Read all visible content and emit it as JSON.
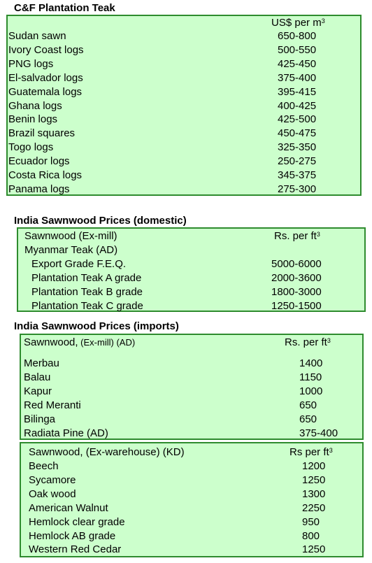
{
  "section1": {
    "title": "C&F Plantation Teak",
    "unit_text": "US$ per m",
    "unit_sup": "3",
    "rows": [
      {
        "label": "Sudan sawn",
        "value": "650-800"
      },
      {
        "label": "Ivory Coast logs",
        "value": "500-550"
      },
      {
        "label": "PNG logs",
        "value": "425-450"
      },
      {
        "label": "El-salvador logs",
        "value": "375-400"
      },
      {
        "label": "Guatemala logs",
        "value": "395-415"
      },
      {
        "label": "Ghana logs",
        "value": "400-425"
      },
      {
        "label": "Benin logs",
        "value": "425-500"
      },
      {
        "label": "Brazil squares",
        "value": "450-475"
      },
      {
        "label": "Togo logs",
        "value": "325-350"
      },
      {
        "label": "Ecuador logs",
        "value": "250-275"
      },
      {
        "label": "Costa Rica logs",
        "value": "345-375"
      },
      {
        "label": "Panama logs",
        "value": "275-300"
      }
    ]
  },
  "section2": {
    "title": "India Sawnwood Prices (domestic)",
    "header_label": "Sawnwood (Ex-mill)",
    "unit_text": "Rs. per ft",
    "unit_sup": "3",
    "subheader": "Myanmar Teak (AD)",
    "rows": [
      {
        "label": "Export Grade F.E.Q.",
        "value": "5000-6000"
      },
      {
        "label": "Plantation Teak A grade",
        "value": "2000-3600"
      },
      {
        "label": "Plantation Teak B grade",
        "value": "1800-3000"
      },
      {
        "label": "Plantation Teak C grade",
        "value": "1250-1500"
      }
    ]
  },
  "section3": {
    "title": "India Sawnwood Prices (imports)",
    "header_label_main": "Sawnwood,",
    "header_label_small": " (Ex-mill) (AD)",
    "unit_text": "Rs. per ft",
    "unit_sup": "3",
    "rows": [
      {
        "label": "Merbau",
        "value": "1400"
      },
      {
        "label": "Balau",
        "value": "1150"
      },
      {
        "label": "Kapur",
        "value": "1000"
      },
      {
        "label": "Red Meranti",
        "value": "650"
      },
      {
        "label": "Bilinga",
        "value": "650"
      },
      {
        "label": "Radiata Pine (AD)",
        "value": "375-400"
      }
    ]
  },
  "section4": {
    "header_label": "Sawnwood, (Ex-warehouse) (KD)",
    "unit_text": "Rs per ft",
    "unit_sup": "3",
    "rows": [
      {
        "label": "Beech",
        "value": "1200"
      },
      {
        "label": "Sycamore",
        "value": "1250"
      },
      {
        "label": "Oak wood",
        "value": "1300"
      },
      {
        "label": "American Walnut",
        "value": "2250"
      },
      {
        "label": "Hemlock clear grade",
        "value": "950"
      },
      {
        "label": "Hemlock AB grade",
        "value": "800"
      },
      {
        "label": "Western Red Cedar",
        "value": "1250"
      }
    ]
  }
}
